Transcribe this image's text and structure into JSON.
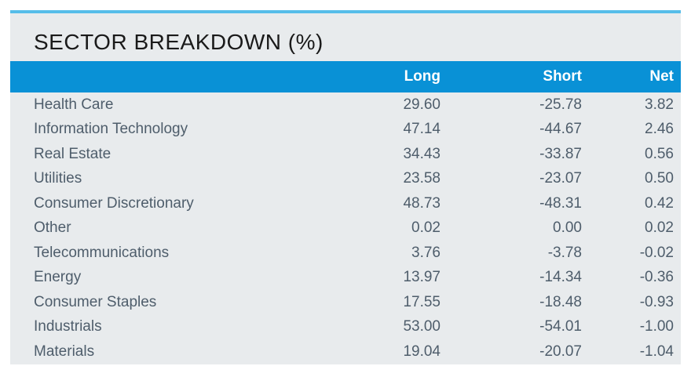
{
  "title": "SECTOR BREAKDOWN (%)",
  "colors": {
    "accent_line": "#56BDE9",
    "header_background": "#0991D6",
    "panel_background": "#E8EBED",
    "title_text": "#1A1A1A",
    "header_text": "#FFFFFF",
    "body_text": "#4E5D6B",
    "page_background": "#FFFFFF"
  },
  "table": {
    "columns": {
      "sector": "",
      "long": "Long",
      "short": "Short",
      "net": "Net"
    },
    "rows": [
      {
        "sector": "Health Care",
        "long": "29.60",
        "short": "-25.78",
        "net": "3.82"
      },
      {
        "sector": "Information Technology",
        "long": "47.14",
        "short": "-44.67",
        "net": "2.46"
      },
      {
        "sector": "Real Estate",
        "long": "34.43",
        "short": "-33.87",
        "net": "0.56"
      },
      {
        "sector": "Utilities",
        "long": "23.58",
        "short": "-23.07",
        "net": "0.50"
      },
      {
        "sector": "Consumer Discretionary",
        "long": "48.73",
        "short": "-48.31",
        "net": "0.42"
      },
      {
        "sector": "Other",
        "long": "0.02",
        "short": "0.00",
        "net": "0.02"
      },
      {
        "sector": "Telecommunications",
        "long": "3.76",
        "short": "-3.78",
        "net": "-0.02"
      },
      {
        "sector": "Energy",
        "long": "13.97",
        "short": "-14.34",
        "net": "-0.36"
      },
      {
        "sector": "Consumer Staples",
        "long": "17.55",
        "short": "-18.48",
        "net": "-0.93"
      },
      {
        "sector": "Industrials",
        "long": "53.00",
        "short": "-54.01",
        "net": "-1.00"
      },
      {
        "sector": "Materials",
        "long": "19.04",
        "short": "-20.07",
        "net": "-1.04"
      }
    ]
  },
  "chart_data": {
    "type": "table",
    "title": "SECTOR BREAKDOWN (%)",
    "columns": [
      "Long",
      "Short",
      "Net"
    ],
    "categories": [
      "Health Care",
      "Information Technology",
      "Real Estate",
      "Utilities",
      "Consumer Discretionary",
      "Other",
      "Telecommunications",
      "Energy",
      "Consumer Staples",
      "Industrials",
      "Materials"
    ],
    "series": [
      {
        "name": "Long",
        "values": [
          29.6,
          47.14,
          34.43,
          23.58,
          48.73,
          0.02,
          3.76,
          13.97,
          17.55,
          53.0,
          19.04
        ]
      },
      {
        "name": "Short",
        "values": [
          -25.78,
          -44.67,
          -33.87,
          -23.07,
          -48.31,
          0.0,
          -3.78,
          -14.34,
          -18.48,
          -54.01,
          -20.07
        ]
      },
      {
        "name": "Net",
        "values": [
          3.82,
          2.46,
          0.56,
          0.5,
          0.42,
          0.02,
          -0.02,
          -0.36,
          -0.93,
          -1.0,
          -1.04
        ]
      }
    ]
  }
}
